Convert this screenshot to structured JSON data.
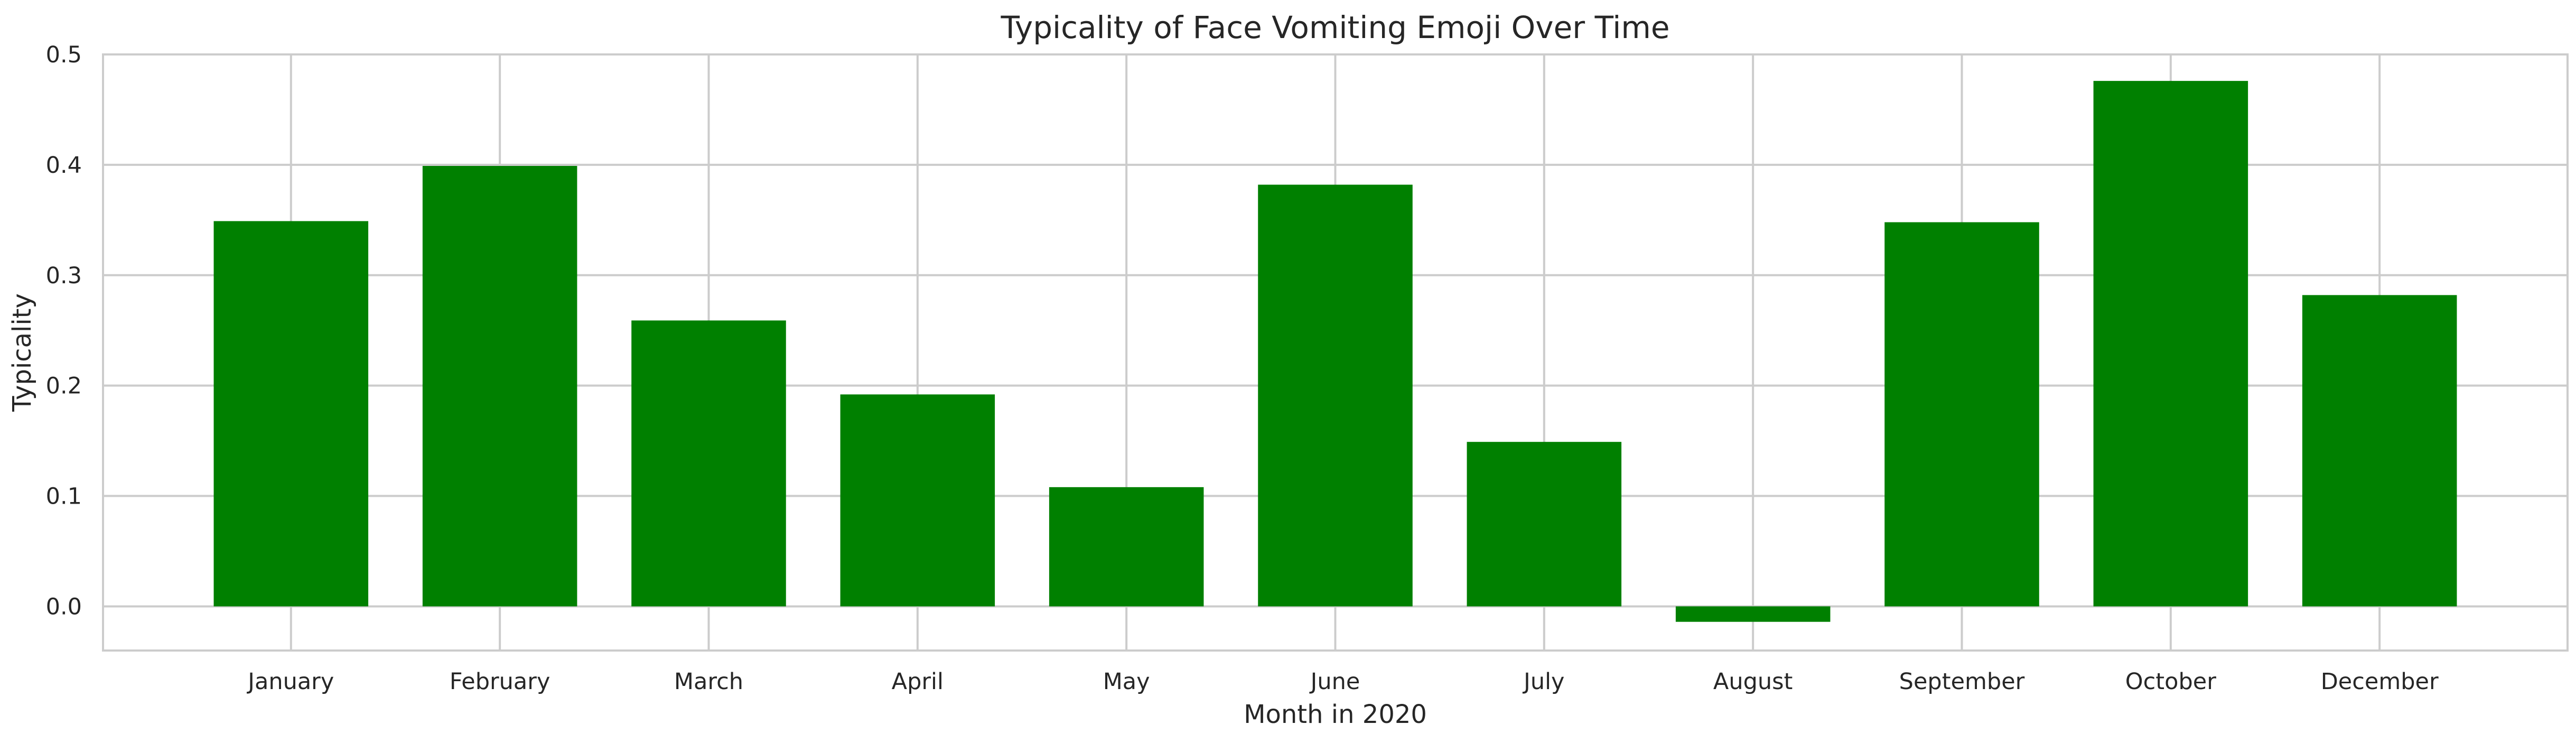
{
  "chart_data": {
    "type": "bar",
    "title": "Typicality of Face Vomiting Emoji Over Time",
    "xlabel": "Month in 2020",
    "ylabel": "Typicality",
    "categories": [
      "January",
      "February",
      "March",
      "April",
      "May",
      "June",
      "July",
      "August",
      "September",
      "October",
      "December"
    ],
    "values": [
      0.349,
      0.399,
      0.259,
      0.192,
      0.108,
      0.382,
      0.149,
      -0.014,
      0.348,
      0.476,
      0.282
    ],
    "ylim": [
      -0.04,
      0.5
    ],
    "yticks": [
      0.0,
      0.1,
      0.2,
      0.3,
      0.4,
      0.5
    ],
    "ytick_labels": [
      "0.0",
      "0.1",
      "0.2",
      "0.3",
      "0.4",
      "0.5"
    ],
    "grid": true,
    "bar_color": "#008000",
    "grid_color": "#cccccc"
  }
}
